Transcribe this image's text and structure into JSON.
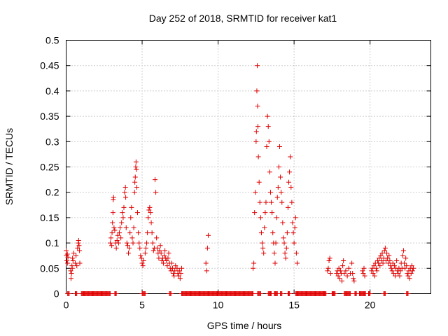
{
  "chart_data": {
    "type": "scatter",
    "title": "Day 252 of 2018, SRMTID for receiver kat1",
    "xlabel": "GPS time / hours",
    "ylabel": "SRMTID / TECUs",
    "xlim": [
      0,
      24
    ],
    "ylim": [
      0,
      0.5
    ],
    "xticks": [
      0,
      5,
      10,
      15,
      20
    ],
    "xtick_labels": [
      "0",
      "5",
      "10",
      "15",
      "20"
    ],
    "yticks": [
      0,
      0.05,
      0.1,
      0.15,
      0.2,
      0.25,
      0.3,
      0.35,
      0.4,
      0.45,
      0.5
    ],
    "ytick_labels": [
      "0",
      "0.05",
      "0.1",
      "0.15",
      "0.2",
      "0.25",
      "0.3",
      "0.35",
      "0.4",
      "0.45",
      "0.5"
    ],
    "grid": true,
    "marker": "+",
    "marker_color": "#e00000",
    "series": [
      {
        "name": "kat1",
        "points": [
          [
            0.0,
            0.085
          ],
          [
            0.02,
            0.075
          ],
          [
            0.05,
            0.065
          ],
          [
            0.08,
            0.078
          ],
          [
            0.1,
            0.06
          ],
          [
            0.12,
            0.072
          ],
          [
            0.3,
            0.045
          ],
          [
            0.32,
            0.03
          ],
          [
            0.35,
            0.04
          ],
          [
            0.38,
            0.055
          ],
          [
            0.4,
            0.05
          ],
          [
            0.42,
            0.07
          ],
          [
            0.45,
            0.065
          ],
          [
            0.5,
            0.08
          ],
          [
            0.6,
            0.06
          ],
          [
            0.65,
            0.075
          ],
          [
            0.7,
            0.055
          ],
          [
            0.75,
            0.09
          ],
          [
            0.8,
            0.1
          ],
          [
            0.82,
            0.105
          ],
          [
            0.85,
            0.095
          ],
          [
            0.88,
            0.085
          ],
          [
            0.9,
            0.06
          ],
          [
            2.9,
            0.1
          ],
          [
            2.95,
            0.11
          ],
          [
            3.0,
            0.095
          ],
          [
            3.02,
            0.12
          ],
          [
            3.05,
            0.14
          ],
          [
            3.08,
            0.16
          ],
          [
            3.1,
            0.185
          ],
          [
            3.12,
            0.19
          ],
          [
            3.15,
            0.13
          ],
          [
            3.2,
            0.125
          ],
          [
            3.25,
            0.1
          ],
          [
            3.3,
            0.09
          ],
          [
            3.35,
            0.105
          ],
          [
            3.4,
            0.115
          ],
          [
            3.45,
            0.1
          ],
          [
            3.5,
            0.12
          ],
          [
            3.55,
            0.13
          ],
          [
            3.6,
            0.11
          ],
          [
            3.65,
            0.14
          ],
          [
            3.7,
            0.16
          ],
          [
            3.75,
            0.15
          ],
          [
            3.8,
            0.17
          ],
          [
            3.85,
            0.2
          ],
          [
            3.9,
            0.21
          ],
          [
            3.92,
            0.19
          ],
          [
            3.95,
            0.13
          ],
          [
            4.0,
            0.1
          ],
          [
            4.05,
            0.095
          ],
          [
            4.1,
            0.08
          ],
          [
            4.15,
            0.09
          ],
          [
            4.2,
            0.12
          ],
          [
            4.25,
            0.15
          ],
          [
            4.3,
            0.17
          ],
          [
            4.35,
            0.11
          ],
          [
            4.4,
            0.1
          ],
          [
            4.45,
            0.13
          ],
          [
            4.5,
            0.2
          ],
          [
            4.52,
            0.22
          ],
          [
            4.55,
            0.23
          ],
          [
            4.58,
            0.25
          ],
          [
            4.6,
            0.26
          ],
          [
            4.62,
            0.245
          ],
          [
            4.65,
            0.21
          ],
          [
            4.7,
            0.16
          ],
          [
            4.75,
            0.12
          ],
          [
            4.8,
            0.1
          ],
          [
            4.85,
            0.09
          ],
          [
            4.9,
            0.075
          ],
          [
            4.95,
            0.07
          ],
          [
            5.0,
            0.06
          ],
          [
            5.05,
            0.055
          ],
          [
            5.1,
            0.065
          ],
          [
            5.2,
            0.08
          ],
          [
            5.25,
            0.09
          ],
          [
            5.3,
            0.1
          ],
          [
            5.35,
            0.12
          ],
          [
            5.4,
            0.15
          ],
          [
            5.45,
            0.165
          ],
          [
            5.5,
            0.17
          ],
          [
            5.55,
            0.16
          ],
          [
            5.6,
            0.14
          ],
          [
            5.65,
            0.12
          ],
          [
            5.7,
            0.1
          ],
          [
            5.75,
            0.085
          ],
          [
            5.8,
            0.09
          ],
          [
            5.85,
            0.225
          ],
          [
            5.9,
            0.2
          ],
          [
            5.95,
            0.11
          ],
          [
            6.0,
            0.09
          ],
          [
            6.05,
            0.08
          ],
          [
            6.1,
            0.07
          ],
          [
            6.15,
            0.085
          ],
          [
            6.2,
            0.095
          ],
          [
            6.25,
            0.08
          ],
          [
            6.3,
            0.065
          ],
          [
            6.35,
            0.07
          ],
          [
            6.4,
            0.06
          ],
          [
            6.45,
            0.075
          ],
          [
            6.5,
            0.085
          ],
          [
            6.55,
            0.07
          ],
          [
            6.6,
            0.065
          ],
          [
            6.65,
            0.055
          ],
          [
            6.7,
            0.07
          ],
          [
            6.75,
            0.08
          ],
          [
            6.8,
            0.06
          ],
          [
            6.85,
            0.05
          ],
          [
            6.9,
            0.045
          ],
          [
            6.95,
            0.06
          ],
          [
            7.0,
            0.05
          ],
          [
            7.05,
            0.04
          ],
          [
            7.1,
            0.035
          ],
          [
            7.15,
            0.045
          ],
          [
            7.2,
            0.055
          ],
          [
            7.3,
            0.05
          ],
          [
            7.35,
            0.04
          ],
          [
            7.4,
            0.035
          ],
          [
            7.45,
            0.045
          ],
          [
            7.5,
            0.03
          ],
          [
            7.55,
            0.04
          ],
          [
            7.6,
            0.05
          ],
          [
            9.2,
            0.06
          ],
          [
            9.25,
            0.045
          ],
          [
            9.3,
            0.09
          ],
          [
            9.35,
            0.115
          ],
          [
            12.3,
            0.05
          ],
          [
            12.35,
            0.06
          ],
          [
            12.4,
            0.16
          ],
          [
            12.45,
            0.2
          ],
          [
            12.5,
            0.3
          ],
          [
            12.52,
            0.32
          ],
          [
            12.55,
            0.4
          ],
          [
            12.58,
            0.45
          ],
          [
            12.6,
            0.37
          ],
          [
            12.62,
            0.33
          ],
          [
            12.65,
            0.27
          ],
          [
            12.7,
            0.22
          ],
          [
            12.75,
            0.18
          ],
          [
            12.8,
            0.15
          ],
          [
            12.85,
            0.12
          ],
          [
            12.9,
            0.1
          ],
          [
            12.95,
            0.09
          ],
          [
            13.0,
            0.08
          ],
          [
            13.05,
            0.13
          ],
          [
            13.1,
            0.16
          ],
          [
            13.15,
            0.18
          ],
          [
            13.2,
            0.29
          ],
          [
            13.25,
            0.35
          ],
          [
            13.3,
            0.33
          ],
          [
            13.35,
            0.3
          ],
          [
            13.4,
            0.24
          ],
          [
            13.45,
            0.2
          ],
          [
            13.5,
            0.18
          ],
          [
            13.55,
            0.16
          ],
          [
            13.6,
            0.12
          ],
          [
            13.65,
            0.1
          ],
          [
            13.7,
            0.08
          ],
          [
            13.75,
            0.06
          ],
          [
            13.8,
            0.1
          ],
          [
            13.85,
            0.15
          ],
          [
            13.9,
            0.19
          ],
          [
            13.95,
            0.21
          ],
          [
            14.0,
            0.25
          ],
          [
            14.05,
            0.29
          ],
          [
            14.1,
            0.23
          ],
          [
            14.15,
            0.2
          ],
          [
            14.2,
            0.18
          ],
          [
            14.25,
            0.14
          ],
          [
            14.3,
            0.11
          ],
          [
            14.35,
            0.1
          ],
          [
            14.4,
            0.08
          ],
          [
            14.45,
            0.07
          ],
          [
            14.5,
            0.09
          ],
          [
            14.55,
            0.12
          ],
          [
            14.6,
            0.17
          ],
          [
            14.65,
            0.22
          ],
          [
            14.7,
            0.24
          ],
          [
            14.75,
            0.27
          ],
          [
            14.8,
            0.21
          ],
          [
            14.85,
            0.18
          ],
          [
            14.9,
            0.14
          ],
          [
            14.95,
            0.12
          ],
          [
            15.0,
            0.1
          ],
          [
            15.05,
            0.13
          ],
          [
            15.1,
            0.15
          ],
          [
            15.15,
            0.08
          ],
          [
            15.2,
            0.06
          ],
          [
            17.2,
            0.045
          ],
          [
            17.25,
            0.05
          ],
          [
            17.3,
            0.065
          ],
          [
            17.35,
            0.07
          ],
          [
            17.4,
            0.04
          ],
          [
            17.8,
            0.04
          ],
          [
            17.85,
            0.045
          ],
          [
            17.9,
            0.035
          ],
          [
            17.95,
            0.05
          ],
          [
            18.0,
            0.03
          ],
          [
            18.05,
            0.045
          ],
          [
            18.1,
            0.04
          ],
          [
            18.15,
            0.025
          ],
          [
            18.2,
            0.055
          ],
          [
            18.25,
            0.065
          ],
          [
            18.3,
            0.04
          ],
          [
            18.4,
            0.045
          ],
          [
            18.5,
            0.035
          ],
          [
            18.6,
            0.05
          ],
          [
            18.7,
            0.04
          ],
          [
            18.8,
            0.06
          ],
          [
            18.85,
            0.04
          ],
          [
            18.9,
            0.03
          ],
          [
            18.95,
            0.025
          ],
          [
            19.5,
            0.045
          ],
          [
            19.55,
            0.04
          ],
          [
            19.6,
            0.05
          ],
          [
            19.65,
            0.035
          ],
          [
            20.1,
            0.045
          ],
          [
            20.15,
            0.05
          ],
          [
            20.2,
            0.04
          ],
          [
            20.25,
            0.055
          ],
          [
            20.3,
            0.035
          ],
          [
            20.35,
            0.06
          ],
          [
            20.4,
            0.05
          ],
          [
            20.45,
            0.045
          ],
          [
            20.5,
            0.065
          ],
          [
            20.55,
            0.06
          ],
          [
            20.6,
            0.07
          ],
          [
            20.65,
            0.055
          ],
          [
            20.7,
            0.075
          ],
          [
            20.75,
            0.065
          ],
          [
            20.8,
            0.08
          ],
          [
            20.85,
            0.06
          ],
          [
            20.9,
            0.07
          ],
          [
            20.95,
            0.085
          ],
          [
            21.0,
            0.09
          ],
          [
            21.05,
            0.065
          ],
          [
            21.1,
            0.08
          ],
          [
            21.15,
            0.07
          ],
          [
            21.2,
            0.06
          ],
          [
            21.25,
            0.075
          ],
          [
            21.3,
            0.065
          ],
          [
            21.35,
            0.055
          ],
          [
            21.4,
            0.05
          ],
          [
            21.45,
            0.045
          ],
          [
            21.5,
            0.06
          ],
          [
            21.55,
            0.04
          ],
          [
            21.6,
            0.055
          ],
          [
            21.65,
            0.035
          ],
          [
            21.7,
            0.05
          ],
          [
            21.75,
            0.065
          ],
          [
            21.8,
            0.045
          ],
          [
            21.85,
            0.04
          ],
          [
            21.9,
            0.05
          ],
          [
            21.95,
            0.035
          ],
          [
            22.0,
            0.045
          ],
          [
            22.05,
            0.06
          ],
          [
            22.1,
            0.05
          ],
          [
            22.15,
            0.075
          ],
          [
            22.2,
            0.085
          ],
          [
            22.25,
            0.06
          ],
          [
            22.3,
            0.05
          ],
          [
            22.35,
            0.07
          ],
          [
            22.4,
            0.055
          ],
          [
            22.45,
            0.04
          ],
          [
            22.5,
            0.035
          ],
          [
            22.55,
            0.045
          ],
          [
            22.6,
            0.03
          ],
          [
            22.65,
            0.05
          ],
          [
            22.7,
            0.04
          ],
          [
            22.75,
            0.055
          ],
          [
            22.8,
            0.045
          ],
          [
            22.85,
            0.05
          ]
        ],
        "zero_runs": [
          [
            0.1,
            0.2
          ],
          [
            0.6,
            0.7
          ],
          [
            1.0,
            2.9
          ],
          [
            3.2,
            3.3
          ],
          [
            5.0,
            5.2
          ],
          [
            6.8,
            6.9
          ],
          [
            7.6,
            12.3
          ],
          [
            12.6,
            12.8
          ],
          [
            13.3,
            13.5
          ],
          [
            13.7,
            13.9
          ],
          [
            14.1,
            14.2
          ],
          [
            14.6,
            14.7
          ],
          [
            15.1,
            17.1
          ],
          [
            17.5,
            17.7
          ],
          [
            18.3,
            18.7
          ],
          [
            19.0,
            19.1
          ],
          [
            19.3,
            19.7
          ],
          [
            19.9,
            20.0
          ],
          [
            20.9,
            21.0
          ],
          [
            22.4,
            22.5
          ]
        ]
      }
    ]
  }
}
